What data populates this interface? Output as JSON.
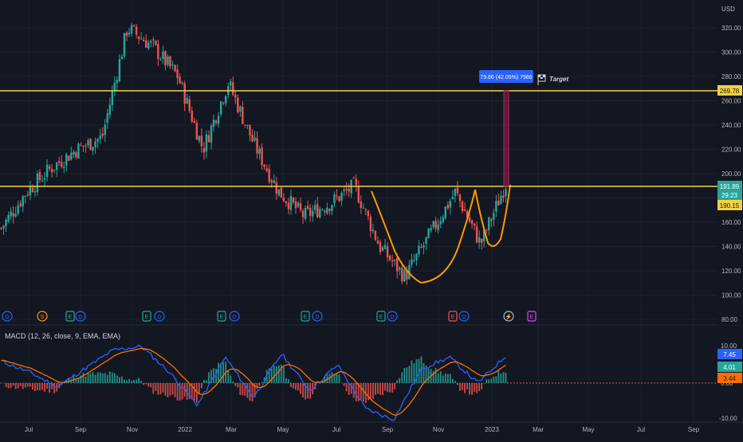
{
  "price_axis": {
    "currency": "USD",
    "ticks": [
      "320.00",
      "300.00",
      "280.00",
      "260.00",
      "240.00",
      "220.00",
      "200.00",
      "180.00",
      "160.00",
      "140.00",
      "120.00",
      "100.00",
      "80.00"
    ],
    "tick_values": [
      320,
      300,
      280,
      260,
      240,
      220,
      200,
      180,
      160,
      140,
      120,
      100,
      80
    ]
  },
  "time_axis": {
    "labels": [
      "Jul",
      "Sep",
      "Nov",
      "2022",
      "Mar",
      "May",
      "Jul",
      "Sep",
      "Nov",
      "2023",
      "Mar",
      "May",
      "Jul",
      "Sep"
    ]
  },
  "price_labels": {
    "target_level": "269.78",
    "last_price": "191.89",
    "countdown": "29:23",
    "resistance_level": "190.15"
  },
  "measure_label": "79.86 (42.05%) 7986",
  "target_label": "Target",
  "event_markers": [
    "D",
    "S",
    "E",
    "D",
    "E",
    "D",
    "E",
    "D",
    "E",
    "D",
    "E",
    "D",
    "E",
    "D",
    "E"
  ],
  "macd": {
    "legend": "MACD (12, 26, close, 9, EMA, EMA)",
    "axis_ticks": [
      "10.00",
      "0.00",
      "-10.00"
    ],
    "badges": {
      "macd": "7.45",
      "histogram": "4.01",
      "signal": "3.44"
    }
  },
  "colors": {
    "background": "#131722",
    "up": "#26a69a",
    "down": "#ef5350",
    "level_line": "#f5d142",
    "pattern": "#ff9800",
    "macd_line": "#2962ff",
    "signal_line": "#ff6d00"
  },
  "chart_data": {
    "type": "candlestick",
    "y_unit": "USD",
    "ylim": [
      80,
      330
    ],
    "x_range": [
      "2021-06",
      "2023-10"
    ],
    "horizontal_levels": [
      269.78,
      190.15
    ],
    "series": [
      {
        "x": "2021-06",
        "y": 155
      },
      {
        "x": "2021-07",
        "y": 185
      },
      {
        "x": "2021-08",
        "y": 205
      },
      {
        "x": "2021-09",
        "y": 220
      },
      {
        "x": "2021-10",
        "y": 230
      },
      {
        "x": "2021-11",
        "y": 320
      },
      {
        "x": "2021-12",
        "y": 305
      },
      {
        "x": "2022-01",
        "y": 280
      },
      {
        "x": "2022-02",
        "y": 220
      },
      {
        "x": "2022-03",
        "y": 275
      },
      {
        "x": "2022-04",
        "y": 225
      },
      {
        "x": "2022-05",
        "y": 185
      },
      {
        "x": "2022-06",
        "y": 165
      },
      {
        "x": "2022-07",
        "y": 175
      },
      {
        "x": "2022-08",
        "y": 190
      },
      {
        "x": "2022-09",
        "y": 140
      },
      {
        "x": "2022-10",
        "y": 115
      },
      {
        "x": "2022-11",
        "y": 150
      },
      {
        "x": "2022-12",
        "y": 185
      },
      {
        "x": "2023-01",
        "y": 142
      },
      {
        "x": "2023-01-20",
        "y": 191.89
      }
    ],
    "macd_series": {
      "range": [
        -10,
        12
      ],
      "values": [
        6,
        3,
        -1,
        4,
        9,
        10,
        3,
        -6,
        7,
        -4,
        8,
        -2,
        5,
        -7,
        -10,
        4,
        7,
        0,
        7.45
      ]
    }
  }
}
